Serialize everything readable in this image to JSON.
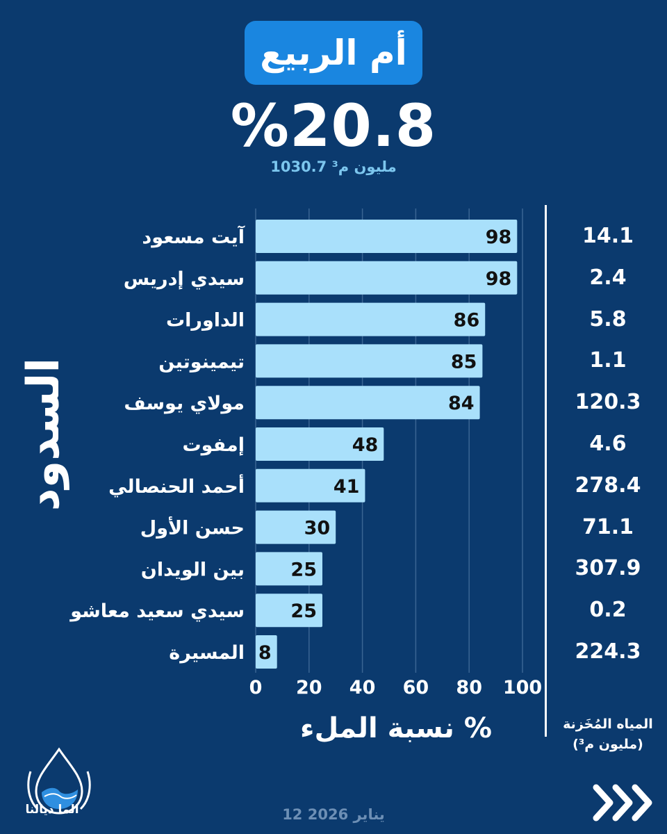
{
  "header": {
    "basin_name": "أم الربيع",
    "fill_rate": "%20.8",
    "total_volume": "1030.7 مليون م³"
  },
  "side_title": "السدود",
  "stored": {
    "label_line1": "المياه المُخَزنة",
    "label_line2": "(مليون م³)"
  },
  "x_axis_title": "نسبة الملء %",
  "footer": {
    "logo_text": "الما ديالنا",
    "date": "12 يناير 2026"
  },
  "colors": {
    "background": "#0b3a6e",
    "bar": "#a9e0fb",
    "accent": "#1a86e0"
  },
  "chart_data": {
    "type": "bar",
    "orientation": "horizontal",
    "categories": [
      "آيت مسعود",
      "سيدي إدريس",
      "الداورات",
      "تيمينوتين",
      "مولاي يوسف",
      "إمفوت",
      "أحمد الحنصالي",
      "حسن الأول",
      "بين الويدان",
      "سيدي سعيد معاشو",
      "المسيرة"
    ],
    "values": [
      98,
      98,
      86,
      85,
      84,
      48,
      41,
      30,
      25,
      25,
      8
    ],
    "stored_volume": [
      "14.1",
      "2.4",
      "5.8",
      "1.1",
      "120.3",
      "4.6",
      "278.4",
      "71.1",
      "307.9",
      "0.2",
      "224.3"
    ],
    "x_ticks": [
      "0",
      "20",
      "40",
      "60",
      "80",
      "100"
    ],
    "xlim": [
      0,
      100
    ],
    "xlabel": "نسبة الملء %",
    "grid": true
  }
}
